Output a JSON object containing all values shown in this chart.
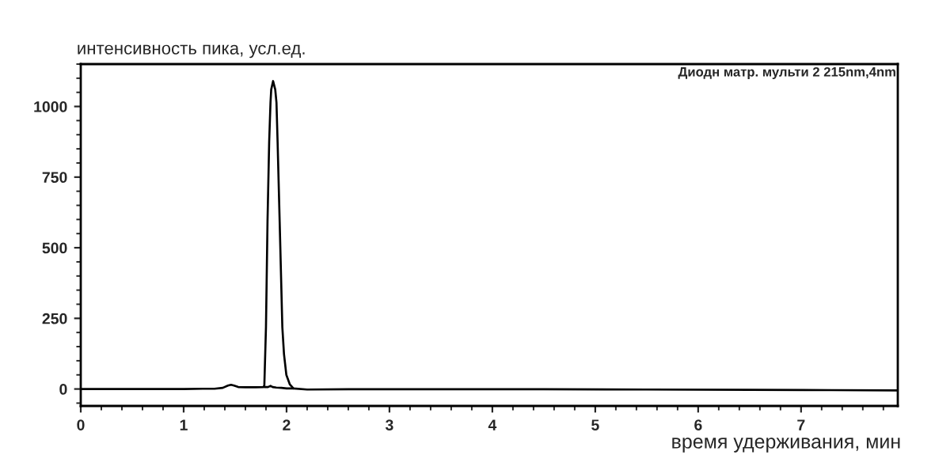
{
  "chart_data": {
    "type": "line",
    "xlabel": "время удерживания, мин",
    "ylabel": "интенсивность пика, усл.ед.",
    "annotations": [
      "Диодн матр. мульти 2 215nm,4nm"
    ],
    "xlim": [
      0,
      7.94
    ],
    "ylim": [
      -60,
      1150
    ],
    "xticks": [
      0,
      {
        "value": 0.2,
        "label": null
      },
      {
        "value": 0.4,
        "label": null
      },
      {
        "value": 0.6,
        "label": null
      },
      {
        "value": 0.8,
        "label": null
      },
      1,
      {
        "value": 1.2,
        "label": null
      },
      {
        "value": 1.4,
        "label": null
      },
      {
        "value": 1.6,
        "label": null
      },
      {
        "value": 1.8,
        "label": null
      },
      2,
      {
        "value": 2.2,
        "label": null
      },
      {
        "value": 2.4,
        "label": null
      },
      {
        "value": 2.6,
        "label": null
      },
      {
        "value": 2.8,
        "label": null
      },
      3,
      {
        "value": 3.2,
        "label": null
      },
      {
        "value": 3.4,
        "label": null
      },
      {
        "value": 3.6,
        "label": null
      },
      {
        "value": 3.8,
        "label": null
      },
      4,
      {
        "value": 4.2,
        "label": null
      },
      {
        "value": 4.4,
        "label": null
      },
      {
        "value": 4.6,
        "label": null
      },
      {
        "value": 4.8,
        "label": null
      },
      5,
      {
        "value": 5.2,
        "label": null
      },
      {
        "value": 5.4,
        "label": null
      },
      {
        "value": 5.6,
        "label": null
      },
      {
        "value": 5.8,
        "label": null
      },
      6,
      {
        "value": 6.2,
        "label": null
      },
      {
        "value": 6.4,
        "label": null
      },
      {
        "value": 6.6,
        "label": null
      },
      {
        "value": 6.8,
        "label": null
      },
      7,
      {
        "value": 7.2,
        "label": null
      },
      {
        "value": 7.4,
        "label": null
      },
      {
        "value": 7.6,
        "label": null
      },
      {
        "value": 7.8,
        "label": null
      }
    ],
    "yticks": [
      {
        "value": -50,
        "label": null
      },
      0,
      {
        "value": 50,
        "label": null
      },
      {
        "value": 100,
        "label": null
      },
      {
        "value": 150,
        "label": null
      },
      {
        "value": 200,
        "label": null
      },
      250,
      {
        "value": 300,
        "label": null
      },
      {
        "value": 350,
        "label": null
      },
      {
        "value": 400,
        "label": null
      },
      {
        "value": 450,
        "label": null
      },
      500,
      {
        "value": 550,
        "label": null
      },
      {
        "value": 600,
        "label": null
      },
      {
        "value": 650,
        "label": null
      },
      {
        "value": 700,
        "label": null
      },
      750,
      {
        "value": 800,
        "label": null
      },
      {
        "value": 850,
        "label": null
      },
      {
        "value": 900,
        "label": null
      },
      {
        "value": 950,
        "label": null
      },
      1000,
      {
        "value": 1050,
        "label": null
      },
      {
        "value": 1100,
        "label": null
      },
      {
        "value": 1150,
        "label": null
      }
    ],
    "line_style": "solid",
    "series": [
      {
        "color": "#000000",
        "x": [
          0,
          0.5,
          1.0,
          1.2,
          1.3,
          1.38,
          1.43,
          1.46,
          1.49,
          1.53,
          1.6,
          1.7,
          1.775,
          1.784,
          1.8,
          1.815,
          1.831,
          1.844,
          1.851,
          1.869,
          1.89,
          1.902,
          1.913,
          1.933,
          1.959,
          1.975,
          1.998,
          2.031,
          2.067,
          2.2,
          2.6,
          3.5,
          4.5,
          5.5,
          6.5,
          7.3,
          7.94
        ],
        "values": [
          0,
          0,
          0,
          1,
          1,
          4,
          12,
          15,
          12,
          7,
          6,
          6,
          7,
          12,
          219,
          593,
          874,
          1014,
          1060,
          1090,
          1060,
          1014,
          874,
          593,
          219,
          124,
          50,
          17,
          2,
          -2,
          -1,
          -1,
          -1,
          -2,
          -3,
          -4,
          -5
        ]
      },
      {
        "color": "#000000",
        "x": [
          1.784,
          1.82,
          1.844,
          1.865,
          1.9,
          1.95,
          2.0,
          2.067
        ],
        "values": [
          7,
          7,
          11,
          7,
          5,
          4,
          2,
          2
        ]
      }
    ]
  }
}
